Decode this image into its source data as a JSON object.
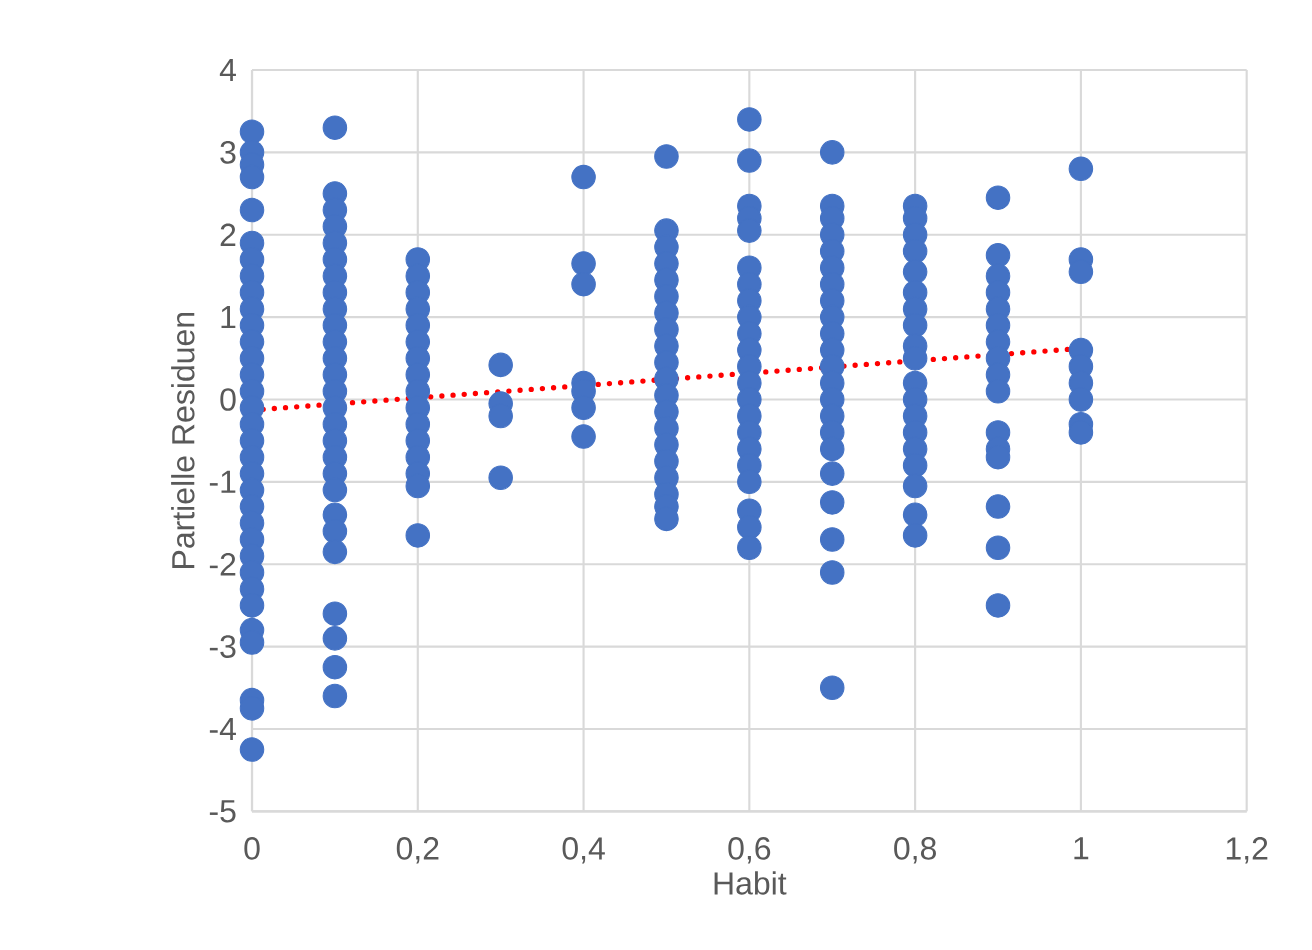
{
  "chart_data": {
    "type": "scatter",
    "xlabel": "Habit",
    "ylabel": "Partielle Residuen",
    "grid": true,
    "xlim": [
      0,
      1.2
    ],
    "ylim": [
      -5,
      4
    ],
    "xticks": [
      0,
      {
        "value": 0.2,
        "label": "0,2"
      },
      {
        "value": 0.4,
        "label": "0,4"
      },
      {
        "value": 0.6,
        "label": "0,6"
      },
      {
        "value": 0.8,
        "label": "0,8"
      },
      1,
      {
        "value": 1.2,
        "label": "1,2"
      }
    ],
    "yticks": [
      -5,
      -4,
      -3,
      -2,
      -1,
      0,
      1,
      2,
      3,
      4
    ],
    "series": [
      {
        "color": "#4472c4",
        "marker": "circle",
        "x": [
          0,
          0,
          0,
          0,
          0,
          0,
          0,
          0,
          0,
          0,
          0,
          0,
          0,
          0,
          0,
          0,
          0,
          0,
          0,
          0,
          0,
          0,
          0,
          0,
          0,
          0,
          0,
          0,
          0,
          0,
          0,
          0,
          0,
          0.1,
          0.1,
          0.1,
          0.1,
          0.1,
          0.1,
          0.1,
          0.1,
          0.1,
          0.1,
          0.1,
          0.1,
          0.1,
          0.1,
          0.1,
          0.1,
          0.1,
          0.1,
          0.1,
          0.1,
          0.1,
          0.1,
          0.1,
          0.1,
          0.1,
          0.1,
          0.1,
          0.2,
          0.2,
          0.2,
          0.2,
          0.2,
          0.2,
          0.2,
          0.2,
          0.2,
          0.2,
          0.2,
          0.2,
          0.2,
          0.2,
          0.2,
          0.2,
          0.3,
          0.3,
          0.3,
          0.3,
          0.4,
          0.4,
          0.4,
          0.4,
          0.4,
          0.4,
          0.4,
          0.5,
          0.5,
          0.5,
          0.5,
          0.5,
          0.5,
          0.5,
          0.5,
          0.5,
          0.5,
          0.5,
          0.5,
          0.5,
          0.5,
          0.5,
          0.5,
          0.5,
          0.5,
          0.5,
          0.5,
          0.6,
          0.6,
          0.6,
          0.6,
          0.6,
          0.6,
          0.6,
          0.6,
          0.6,
          0.6,
          0.6,
          0.6,
          0.6,
          0.6,
          0.6,
          0.6,
          0.6,
          0.6,
          0.6,
          0.6,
          0.6,
          0.6,
          0.7,
          0.7,
          0.7,
          0.7,
          0.7,
          0.7,
          0.7,
          0.7,
          0.7,
          0.7,
          0.7,
          0.7,
          0.7,
          0.7,
          0.7,
          0.7,
          0.7,
          0.7,
          0.7,
          0.7,
          0.7,
          0.7,
          0.8,
          0.8,
          0.8,
          0.8,
          0.8,
          0.8,
          0.8,
          0.8,
          0.8,
          0.8,
          0.8,
          0.8,
          0.8,
          0.8,
          0.8,
          0.8,
          0.8,
          0.8,
          0.8,
          0.9,
          0.9,
          0.9,
          0.9,
          0.9,
          0.9,
          0.9,
          0.9,
          0.9,
          0.9,
          0.9,
          0.9,
          0.9,
          0.9,
          0.9,
          0.9,
          1,
          1,
          1,
          1,
          1,
          1,
          1,
          1,
          1
        ],
        "values": [
          3.25,
          3.0,
          2.85,
          2.7,
          2.3,
          1.9,
          1.7,
          1.5,
          1.3,
          1.1,
          0.9,
          0.7,
          0.5,
          0.3,
          0.1,
          -0.1,
          -0.3,
          -0.5,
          -0.7,
          -0.9,
          -1.1,
          -1.3,
          -1.5,
          -1.7,
          -1.9,
          -2.1,
          -2.3,
          -2.5,
          -2.8,
          -2.95,
          -3.65,
          -3.75,
          -4.25,
          3.3,
          2.5,
          2.3,
          2.1,
          1.9,
          1.7,
          1.5,
          1.3,
          1.1,
          0.9,
          0.7,
          0.5,
          0.3,
          0.1,
          -0.1,
          -0.3,
          -0.5,
          -0.7,
          -0.9,
          -1.1,
          -1.4,
          -1.6,
          -1.85,
          -2.6,
          -2.9,
          -3.25,
          -3.6,
          1.7,
          1.5,
          1.3,
          1.1,
          0.9,
          0.7,
          0.5,
          0.3,
          0.1,
          -0.1,
          -0.3,
          -0.5,
          -0.7,
          -0.9,
          -1.05,
          -1.65,
          0.42,
          -0.05,
          -0.2,
          -0.95,
          2.7,
          1.65,
          1.4,
          0.2,
          0.1,
          -0.1,
          -0.45,
          2.95,
          2.05,
          1.85,
          1.65,
          1.45,
          1.25,
          1.05,
          0.85,
          0.65,
          0.45,
          0.25,
          0.05,
          -0.15,
          -0.35,
          -0.55,
          -0.75,
          -0.95,
          -1.15,
          -1.3,
          -1.45,
          3.4,
          2.9,
          2.35,
          2.2,
          2.05,
          1.6,
          1.4,
          1.2,
          1.0,
          0.8,
          0.6,
          0.4,
          0.2,
          0.0,
          -0.2,
          -0.4,
          -0.6,
          -0.8,
          -1.0,
          -1.35,
          -1.55,
          -1.8,
          3.0,
          2.35,
          2.2,
          2.0,
          1.8,
          1.6,
          1.4,
          1.2,
          1.0,
          0.8,
          0.6,
          0.4,
          0.2,
          0.0,
          -0.2,
          -0.4,
          -0.6,
          -0.9,
          -1.25,
          -1.7,
          -2.1,
          -3.5,
          2.35,
          2.2,
          2.0,
          1.8,
          1.55,
          1.3,
          1.1,
          0.9,
          0.65,
          0.5,
          0.2,
          0.0,
          -0.2,
          -0.4,
          -0.6,
          -0.8,
          -1.05,
          -1.4,
          -1.65,
          2.45,
          1.75,
          1.5,
          1.3,
          1.1,
          0.9,
          0.7,
          0.5,
          0.3,
          0.1,
          -0.4,
          -0.6,
          -0.7,
          -1.3,
          -1.8,
          -2.5,
          2.8,
          1.7,
          1.55,
          0.6,
          0.4,
          0.2,
          0.0,
          -0.3,
          -0.4
        ]
      },
      {
        "type": "line",
        "color": "#ff0000",
        "marker": "none",
        "line_style": "dotted",
        "x": [
          0,
          1
        ],
        "values": [
          -0.13,
          0.62
        ]
      }
    ]
  }
}
